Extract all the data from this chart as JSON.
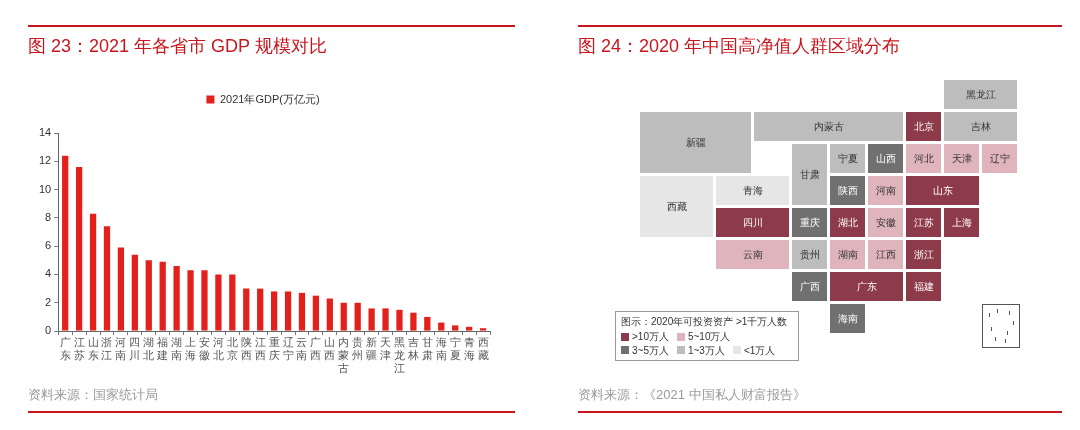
{
  "chart_data": [
    {
      "type": "bar",
      "title": "图 23：2021 年各省市 GDP 规模对比",
      "categories": [
        "广东",
        "江苏",
        "山东",
        "浙江",
        "河南",
        "四川",
        "湖北",
        "福建",
        "湖南",
        "上海",
        "安徽",
        "河北",
        "北京",
        "陕西",
        "江西",
        "重庆",
        "辽宁",
        "云南",
        "广西",
        "山西",
        "内蒙古",
        "贵州",
        "新疆",
        "天津",
        "黑龙江",
        "吉林",
        "甘肃",
        "海南",
        "宁夏",
        "青海",
        "西藏"
      ],
      "series": [
        {
          "name": "2021年GDP(万亿元)",
          "color": "#e3211c",
          "values": [
            12.4,
            11.6,
            8.3,
            7.4,
            5.9,
            5.4,
            5.0,
            4.9,
            4.6,
            4.3,
            4.3,
            4.0,
            4.0,
            3.0,
            3.0,
            2.8,
            2.8,
            2.7,
            2.5,
            2.3,
            2.0,
            2.0,
            1.6,
            1.6,
            1.5,
            1.3,
            1.0,
            0.6,
            0.4,
            0.3,
            0.2
          ]
        }
      ],
      "ylim": [
        0,
        14
      ],
      "yticks": [
        0,
        2,
        4,
        6,
        8,
        10,
        12,
        14
      ],
      "legend": "top",
      "annotations": [
        "资料来源：国家统计局"
      ]
    },
    {
      "type": "other",
      "title": "图 24：2020 年中国高净值人群区域分布",
      "categories": [
        "黑龙江",
        "新疆",
        "内蒙古",
        "北京",
        "吉林",
        "宁夏",
        "山西",
        "河北",
        "天津",
        "辽宁",
        "青海",
        "甘肃",
        "陕西",
        "河南",
        "山东",
        "西藏",
        "四川",
        "重庆",
        "湖北",
        "安徽",
        "江苏",
        "上海",
        "云南",
        "贵州",
        "湖南",
        "江西",
        "浙江",
        "广西",
        "广东",
        "福建",
        "海南"
      ],
      "colors": [
        "#bdbdbd",
        "#bdbdbd",
        "#bdbdbd",
        "#8d3b4a",
        "#bdbdbd",
        "#bdbdbd",
        "#707070",
        "#dfb4bd",
        "#dfb4bd",
        "#dfb4bd",
        "#e6e6e6",
        "#bdbdbd",
        "#707070",
        "#dfb4bd",
        "#8d3b4a",
        "#e6e6e6",
        "#8d3b4a",
        "#707070",
        "#8d3b4a",
        "#dfb4bd",
        "#8d3b4a",
        "#8d3b4a",
        "#dfb4bd",
        "#bdbdbd",
        "#dfb4bd",
        "#dfb4bd",
        "#8d3b4a",
        "#707070",
        "#8d3b4a",
        "#8d3b4a",
        "#707070"
      ],
      "legend_title": "图示：2020年可投资资产 >1千万人数",
      "series": [
        {
          "name": ">10万人",
          "color": "#8d3b4a",
          "values": [
            null,
            null,
            null,
            null,
            null,
            null,
            null,
            null,
            null,
            null,
            null,
            null,
            null,
            null,
            null,
            null,
            null,
            null,
            null,
            null,
            null,
            null,
            null,
            null,
            null,
            null,
            null,
            null,
            null,
            null,
            null
          ]
        },
        {
          "name": "5~10万人",
          "color": "#dfb4bd",
          "values": [
            null,
            null,
            null,
            null,
            null,
            null,
            null,
            null,
            null,
            null,
            null,
            null,
            null,
            null,
            null,
            null,
            null,
            null,
            null,
            null,
            null,
            null,
            null,
            null,
            null,
            null,
            null,
            null,
            null,
            null,
            null
          ]
        },
        {
          "name": "3~5万人",
          "color": "#707070",
          "values": [
            null,
            null,
            null,
            null,
            null,
            null,
            null,
            null,
            null,
            null,
            null,
            null,
            null,
            null,
            null,
            null,
            null,
            null,
            null,
            null,
            null,
            null,
            null,
            null,
            null,
            null,
            null,
            null,
            null,
            null,
            null
          ]
        },
        {
          "name": "1~3万人",
          "color": "#bdbdbd",
          "values": [
            null,
            null,
            null,
            null,
            null,
            null,
            null,
            null,
            null,
            null,
            null,
            null,
            null,
            null,
            null,
            null,
            null,
            null,
            null,
            null,
            null,
            null,
            null,
            null,
            null,
            null,
            null,
            null,
            null,
            null,
            null
          ]
        },
        {
          "name": "<1万人",
          "color": "#e6e6e6",
          "values": [
            null,
            null,
            null,
            null,
            null,
            null,
            null,
            null,
            null,
            null,
            null,
            null,
            null,
            null,
            null,
            null,
            null,
            null,
            null,
            null,
            null,
            null,
            null,
            null,
            null,
            null,
            null,
            null,
            null,
            null,
            null
          ]
        }
      ],
      "legend": "bottom left",
      "annotations": [
        "资料来源：《2021 中国私人财富报告》"
      ]
    }
  ]
}
